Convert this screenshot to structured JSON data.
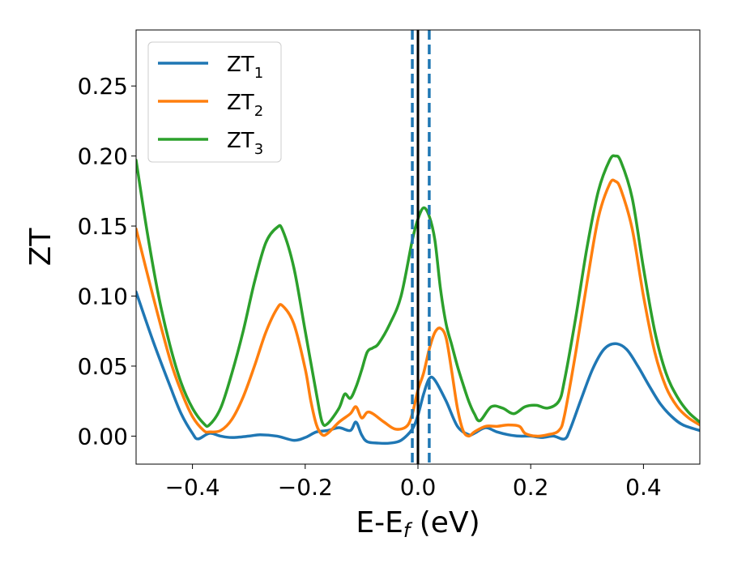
{
  "chart_data": {
    "type": "line",
    "xlabel": "E-E",
    "xlabel_sub": "f",
    "xlabel_unit": " (eV)",
    "ylabel": "ZT",
    "xlim": [
      -0.5,
      0.5
    ],
    "ylim": [
      -0.02,
      0.29
    ],
    "grid": false,
    "legend_position": "top-left",
    "x_ticks": [
      -0.4,
      -0.2,
      0.0,
      0.2,
      0.4
    ],
    "x_tick_labels": [
      "−0.4",
      "−0.2",
      "0.0",
      "0.2",
      "0.4"
    ],
    "y_ticks": [
      0.0,
      0.05,
      0.1,
      0.15,
      0.2,
      0.25
    ],
    "y_tick_labels": [
      "0.00",
      "0.05",
      "0.10",
      "0.15",
      "0.20",
      "0.25"
    ],
    "vlines": [
      {
        "x": 0.0,
        "style": "solid",
        "color": "#000000"
      },
      {
        "x": -0.01,
        "style": "dashed",
        "color": "#1f77b4"
      },
      {
        "x": 0.02,
        "style": "dashed",
        "color": "#1f77b4"
      }
    ],
    "series": [
      {
        "name": "ZT",
        "sub": "1",
        "color": "#1f77b4",
        "points": [
          [
            -0.5,
            0.103
          ],
          [
            -0.47,
            0.068
          ],
          [
            -0.44,
            0.036
          ],
          [
            -0.42,
            0.016
          ],
          [
            -0.4,
            0.002
          ],
          [
            -0.39,
            -0.002
          ],
          [
            -0.37,
            0.002
          ],
          [
            -0.35,
            0.0
          ],
          [
            -0.33,
            -0.001
          ],
          [
            -0.3,
            0.0
          ],
          [
            -0.28,
            0.001
          ],
          [
            -0.25,
            0.0
          ],
          [
            -0.22,
            -0.003
          ],
          [
            -0.2,
            -0.001
          ],
          [
            -0.18,
            0.003
          ],
          [
            -0.16,
            0.004
          ],
          [
            -0.14,
            0.006
          ],
          [
            -0.12,
            0.004
          ],
          [
            -0.11,
            0.01
          ],
          [
            -0.1,
            0.001
          ],
          [
            -0.09,
            -0.004
          ],
          [
            -0.07,
            -0.005
          ],
          [
            -0.05,
            -0.005
          ],
          [
            -0.03,
            -0.003
          ],
          [
            -0.01,
            0.005
          ],
          [
            0.0,
            0.015
          ],
          [
            0.01,
            0.03
          ],
          [
            0.02,
            0.041
          ],
          [
            0.03,
            0.04
          ],
          [
            0.05,
            0.025
          ],
          [
            0.07,
            0.007
          ],
          [
            0.09,
            0.001
          ],
          [
            0.1,
            0.002
          ],
          [
            0.12,
            0.006
          ],
          [
            0.14,
            0.003
          ],
          [
            0.16,
            0.001
          ],
          [
            0.18,
            0.0
          ],
          [
            0.2,
            0.0
          ],
          [
            0.22,
            -0.001
          ],
          [
            0.24,
            0.0
          ],
          [
            0.26,
            -0.002
          ],
          [
            0.27,
            0.005
          ],
          [
            0.29,
            0.027
          ],
          [
            0.31,
            0.048
          ],
          [
            0.33,
            0.062
          ],
          [
            0.35,
            0.066
          ],
          [
            0.37,
            0.062
          ],
          [
            0.39,
            0.05
          ],
          [
            0.41,
            0.036
          ],
          [
            0.43,
            0.023
          ],
          [
            0.45,
            0.014
          ],
          [
            0.47,
            0.008
          ],
          [
            0.5,
            0.004
          ]
        ]
      },
      {
        "name": "ZT",
        "sub": "2",
        "color": "#ff7f0e",
        "points": [
          [
            -0.5,
            0.148
          ],
          [
            -0.47,
            0.1
          ],
          [
            -0.44,
            0.055
          ],
          [
            -0.42,
            0.032
          ],
          [
            -0.4,
            0.014
          ],
          [
            -0.38,
            0.004
          ],
          [
            -0.37,
            0.003
          ],
          [
            -0.35,
            0.004
          ],
          [
            -0.33,
            0.012
          ],
          [
            -0.31,
            0.028
          ],
          [
            -0.29,
            0.05
          ],
          [
            -0.27,
            0.074
          ],
          [
            -0.25,
            0.091
          ],
          [
            -0.24,
            0.093
          ],
          [
            -0.22,
            0.08
          ],
          [
            -0.2,
            0.048
          ],
          [
            -0.19,
            0.025
          ],
          [
            -0.18,
            0.008
          ],
          [
            -0.17,
            0.001
          ],
          [
            -0.16,
            0.002
          ],
          [
            -0.14,
            0.01
          ],
          [
            -0.12,
            0.016
          ],
          [
            -0.11,
            0.021
          ],
          [
            -0.1,
            0.013
          ],
          [
            -0.09,
            0.017
          ],
          [
            -0.08,
            0.016
          ],
          [
            -0.06,
            0.01
          ],
          [
            -0.04,
            0.005
          ],
          [
            -0.02,
            0.007
          ],
          [
            -0.01,
            0.016
          ],
          [
            0.0,
            0.033
          ],
          [
            0.01,
            0.045
          ],
          [
            0.02,
            0.062
          ],
          [
            0.03,
            0.074
          ],
          [
            0.04,
            0.077
          ],
          [
            0.05,
            0.07
          ],
          [
            0.06,
            0.046
          ],
          [
            0.07,
            0.02
          ],
          [
            0.08,
            0.004
          ],
          [
            0.09,
            0.0
          ],
          [
            0.1,
            0.003
          ],
          [
            0.12,
            0.007
          ],
          [
            0.14,
            0.007
          ],
          [
            0.16,
            0.008
          ],
          [
            0.18,
            0.007
          ],
          [
            0.19,
            0.002
          ],
          [
            0.21,
            0.0
          ],
          [
            0.23,
            0.001
          ],
          [
            0.25,
            0.004
          ],
          [
            0.26,
            0.015
          ],
          [
            0.28,
            0.06
          ],
          [
            0.3,
            0.11
          ],
          [
            0.32,
            0.156
          ],
          [
            0.34,
            0.18
          ],
          [
            0.35,
            0.182
          ],
          [
            0.36,
            0.176
          ],
          [
            0.38,
            0.148
          ],
          [
            0.4,
            0.1
          ],
          [
            0.42,
            0.06
          ],
          [
            0.44,
            0.035
          ],
          [
            0.46,
            0.021
          ],
          [
            0.48,
            0.013
          ],
          [
            0.5,
            0.008
          ]
        ]
      },
      {
        "name": "ZT",
        "sub": "3",
        "color": "#2ca02c",
        "points": [
          [
            -0.5,
            0.197
          ],
          [
            -0.48,
            0.145
          ],
          [
            -0.46,
            0.1
          ],
          [
            -0.44,
            0.065
          ],
          [
            -0.42,
            0.038
          ],
          [
            -0.4,
            0.02
          ],
          [
            -0.38,
            0.009
          ],
          [
            -0.37,
            0.008
          ],
          [
            -0.35,
            0.02
          ],
          [
            -0.33,
            0.045
          ],
          [
            -0.31,
            0.075
          ],
          [
            -0.29,
            0.11
          ],
          [
            -0.27,
            0.138
          ],
          [
            -0.25,
            0.149
          ],
          [
            -0.24,
            0.147
          ],
          [
            -0.22,
            0.12
          ],
          [
            -0.2,
            0.075
          ],
          [
            -0.18,
            0.03
          ],
          [
            -0.17,
            0.01
          ],
          [
            -0.16,
            0.009
          ],
          [
            -0.14,
            0.02
          ],
          [
            -0.13,
            0.03
          ],
          [
            -0.12,
            0.027
          ],
          [
            -0.11,
            0.035
          ],
          [
            -0.1,
            0.047
          ],
          [
            -0.09,
            0.06
          ],
          [
            -0.08,
            0.063
          ],
          [
            -0.07,
            0.066
          ],
          [
            -0.05,
            0.08
          ],
          [
            -0.03,
            0.1
          ],
          [
            -0.01,
            0.14
          ],
          [
            0.0,
            0.155
          ],
          [
            0.01,
            0.163
          ],
          [
            0.02,
            0.157
          ],
          [
            0.03,
            0.14
          ],
          [
            0.04,
            0.105
          ],
          [
            0.05,
            0.08
          ],
          [
            0.06,
            0.065
          ],
          [
            0.07,
            0.05
          ],
          [
            0.08,
            0.037
          ],
          [
            0.09,
            0.025
          ],
          [
            0.1,
            0.016
          ],
          [
            0.11,
            0.011
          ],
          [
            0.13,
            0.021
          ],
          [
            0.15,
            0.02
          ],
          [
            0.17,
            0.016
          ],
          [
            0.19,
            0.021
          ],
          [
            0.21,
            0.022
          ],
          [
            0.23,
            0.02
          ],
          [
            0.25,
            0.025
          ],
          [
            0.26,
            0.04
          ],
          [
            0.28,
            0.085
          ],
          [
            0.3,
            0.135
          ],
          [
            0.32,
            0.175
          ],
          [
            0.34,
            0.197
          ],
          [
            0.35,
            0.2
          ],
          [
            0.36,
            0.196
          ],
          [
            0.38,
            0.17
          ],
          [
            0.4,
            0.12
          ],
          [
            0.42,
            0.075
          ],
          [
            0.44,
            0.045
          ],
          [
            0.46,
            0.028
          ],
          [
            0.48,
            0.017
          ],
          [
            0.5,
            0.01
          ]
        ]
      }
    ]
  }
}
